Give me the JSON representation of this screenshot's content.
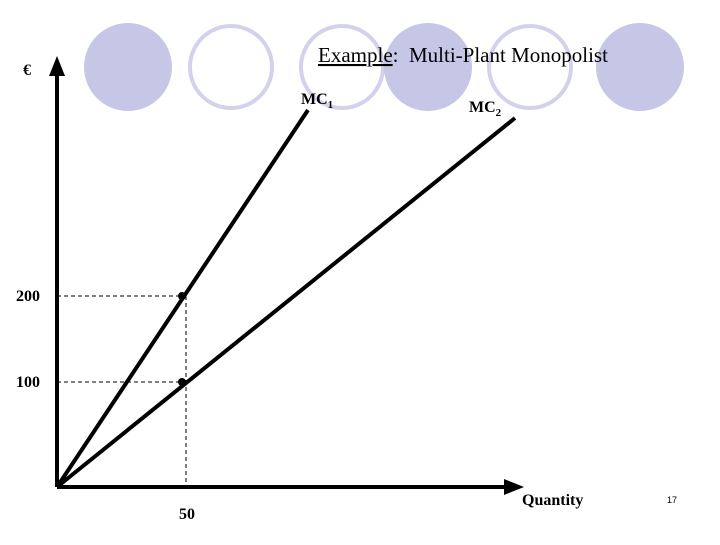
{
  "title": {
    "underlined": "Example",
    "rest": ":  Multi-Plant Monopolist"
  },
  "axes": {
    "y_label": "€",
    "x_label": "Quantity",
    "x_ticks": [
      "50"
    ],
    "y_ticks": [
      "200",
      "100"
    ]
  },
  "curves": [
    {
      "name": "MC",
      "subscript": "1"
    },
    {
      "name": "MC",
      "subscript": "2"
    }
  ],
  "page_number": "17",
  "colors": {
    "decor_fill": "#c6c6e6",
    "decor_ring": "#d2d2ec",
    "line": "#000000"
  }
}
